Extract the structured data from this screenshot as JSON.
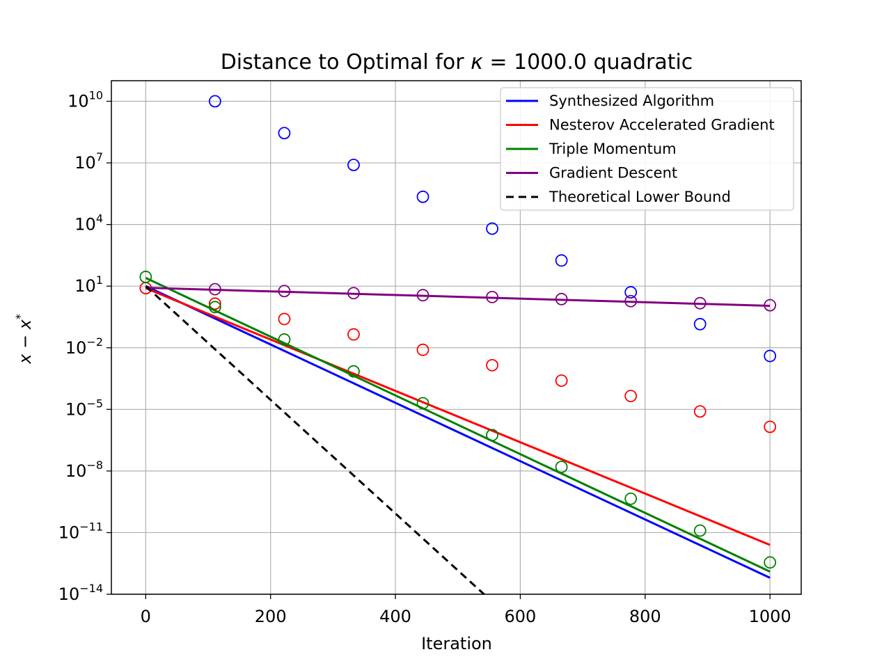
{
  "chart_data": {
    "type": "line",
    "title": "Distance to Optimal for κ = 1000.0 quadratic",
    "title_parts": {
      "prefix": "Distance to Optimal for ",
      "symbol": "κ",
      "middle": " = 1000.0 quadratic"
    },
    "xlabel": "Iteration",
    "ylabel": "x − x*",
    "ylabel_parts": {
      "base": "x − x",
      "sup": "*"
    },
    "xlim": [
      -55,
      1050
    ],
    "ylim_exponent": [
      -14,
      11
    ],
    "yscale": "log",
    "grid": true,
    "legend_position": "top-right",
    "x_ticks": [
      0,
      200,
      400,
      600,
      800,
      1000
    ],
    "x_tick_labels": [
      "0",
      "200",
      "400",
      "600",
      "800",
      "1000"
    ],
    "y_tick_exponents": [
      -14,
      -11,
      -8,
      -5,
      -2,
      1,
      4,
      7,
      10
    ],
    "y_tick_labels": [
      "−14",
      "−11",
      "−8",
      "−5",
      "−2",
      "1",
      "4",
      "7",
      "10"
    ],
    "y_tick_base": "10",
    "series": [
      {
        "name": "Synthesized Algorithm",
        "color": "#0000ff",
        "style": "solid",
        "line_log10": [
          [
            0,
            1.0
          ],
          [
            1000,
            -13.2
          ]
        ],
        "markers_log10": [
          [
            111,
            10.0
          ],
          [
            222,
            8.45
          ],
          [
            333,
            6.9
          ],
          [
            444,
            5.35
          ],
          [
            555,
            3.8
          ],
          [
            666,
            2.25
          ],
          [
            777,
            0.7
          ],
          [
            888,
            -0.85
          ],
          [
            1000,
            -2.4
          ]
        ]
      },
      {
        "name": "Nesterov Accelerated Gradient",
        "color": "#ff0000",
        "style": "solid",
        "line_log10": [
          [
            0,
            0.9
          ],
          [
            1000,
            -11.6
          ]
        ],
        "markers_log10": [
          [
            0,
            0.9
          ],
          [
            111,
            0.15
          ],
          [
            222,
            -0.6
          ],
          [
            333,
            -1.35
          ],
          [
            444,
            -2.1
          ],
          [
            555,
            -2.85
          ],
          [
            666,
            -3.6
          ],
          [
            777,
            -4.35
          ],
          [
            888,
            -5.1
          ],
          [
            1000,
            -5.85
          ]
        ]
      },
      {
        "name": "Triple Momentum",
        "color": "#008000",
        "style": "solid",
        "line_log10": [
          [
            0,
            1.4
          ],
          [
            1000,
            -12.9
          ]
        ],
        "markers_log10": [
          [
            0,
            1.45
          ],
          [
            111,
            -0.02
          ],
          [
            222,
            -1.6
          ],
          [
            333,
            -3.15
          ],
          [
            444,
            -4.7
          ],
          [
            555,
            -6.25
          ],
          [
            666,
            -7.8
          ],
          [
            777,
            -9.35
          ],
          [
            888,
            -10.9
          ],
          [
            1000,
            -12.45
          ]
        ]
      },
      {
        "name": "Gradient Descent",
        "color": "#800080",
        "style": "solid",
        "line_log10": [
          [
            0,
            0.92
          ],
          [
            1000,
            0.04
          ]
        ],
        "markers_log10": [
          [
            111,
            0.85
          ],
          [
            222,
            0.76
          ],
          [
            333,
            0.66
          ],
          [
            444,
            0.56
          ],
          [
            555,
            0.47
          ],
          [
            666,
            0.37
          ],
          [
            777,
            0.27
          ],
          [
            888,
            0.17
          ],
          [
            1000,
            0.07
          ]
        ]
      },
      {
        "name": "Theoretical Lower Bound",
        "color": "#000000",
        "style": "dashed",
        "line_log10": [
          [
            0,
            1.0
          ],
          [
            542,
            -14.0
          ]
        ],
        "markers_log10": []
      }
    ]
  }
}
